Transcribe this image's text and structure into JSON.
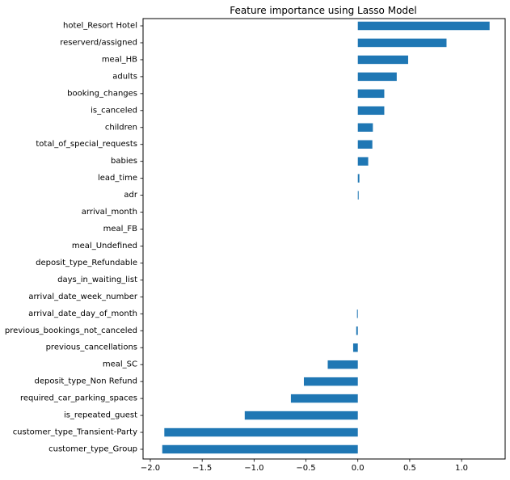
{
  "chart_data": {
    "type": "bar",
    "orientation": "horizontal",
    "title": "Feature importance using Lasso Model",
    "xlabel": "",
    "ylabel": "",
    "xlim": [
      -2.07,
      1.42
    ],
    "xticks": [
      -2.0,
      -1.5,
      -1.0,
      -0.5,
      0.0,
      0.5,
      1.0
    ],
    "xtick_labels": [
      "−2.0",
      "−1.5",
      "−1.0",
      "−0.5",
      "0.0",
      "0.5",
      "1.0"
    ],
    "grid": false,
    "legend": "none",
    "bar_color": "#1f77b4",
    "categories": [
      "hotel_Resort Hotel",
      "reserverd/assigned",
      "meal_HB",
      "adults",
      "booking_changes",
      "is_canceled",
      "children",
      "total_of_special_requests",
      "babies",
      "lead_time",
      "adr",
      "arrival_month",
      "meal_FB",
      "meal_Undefined",
      "deposit_type_Refundable",
      "days_in_waiting_list",
      "arrival_date_week_number",
      "arrival_date_day_of_month",
      "previous_bookings_not_canceled",
      "previous_cancellations",
      "meal_SC",
      "deposit_type_Non Refund",
      "required_car_parking_spaces",
      "is_repeated_guest",
      "customer_type_Transient-Party",
      "customer_type_Group"
    ],
    "values": [
      1.27,
      0.855,
      0.485,
      0.375,
      0.255,
      0.255,
      0.145,
      0.14,
      0.1,
      0.015,
      0.008,
      0.0,
      0.0,
      0.0,
      0.0,
      0.0,
      0.0,
      -0.008,
      -0.015,
      -0.045,
      -0.29,
      -0.52,
      -0.645,
      -1.09,
      -1.865,
      -1.885
    ]
  }
}
